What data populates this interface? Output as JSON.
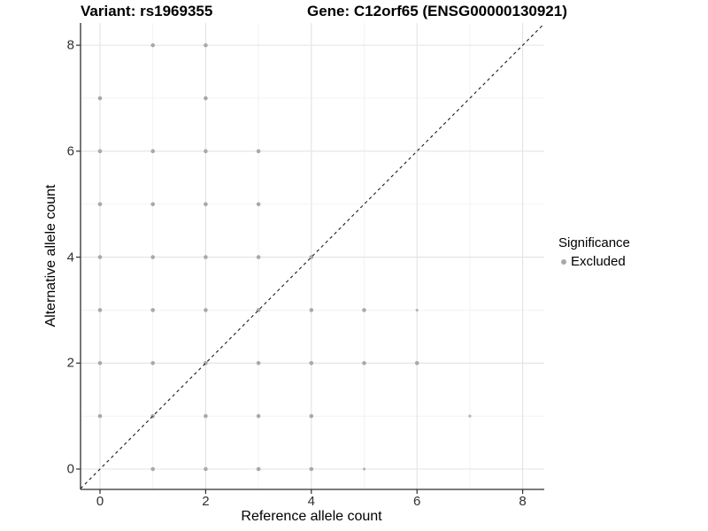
{
  "titles": {
    "variant": "Variant: rs1969355",
    "gene": "Gene: C12orf65 (ENSG00000130921)"
  },
  "axes": {
    "x_label": "Reference allele count",
    "y_label": "Alternative allele count",
    "x_tick_labels": [
      "0",
      "2",
      "4",
      "6",
      "8"
    ],
    "y_tick_labels": [
      "0",
      "2",
      "4",
      "6",
      "8"
    ]
  },
  "legend": {
    "title": "Significance",
    "items": [
      {
        "label": "Excluded",
        "color": "#a9a9a9"
      }
    ]
  },
  "colors": {
    "point": "#a9a9a9",
    "point_small": "#b5b5b5",
    "grid_major": "#e3e3e3",
    "grid_minor": "#f1f1f1",
    "axis_line": "#2e2e2e",
    "reference_line": "#1a1a1a",
    "background": "#ffffff"
  },
  "chart_data": {
    "type": "scatter",
    "title": "Variant: rs1969355   Gene: C12orf65 (ENSG00000130921)",
    "xlabel": "Reference allele count",
    "ylabel": "Alternative allele count",
    "xlim": [
      -0.4,
      8.4
    ],
    "ylim": [
      -0.4,
      8.4
    ],
    "x_breaks": [
      0,
      2,
      4,
      6,
      8
    ],
    "y_breaks": [
      0,
      2,
      4,
      6,
      8
    ],
    "minor_breaks": [
      1,
      3,
      5,
      7
    ],
    "grid": "on",
    "legend_position": "right",
    "reference_line": {
      "equation": "y = x",
      "style": "dashed",
      "color": "#1a1a1a"
    },
    "series": [
      {
        "name": "Excluded",
        "color": "#a9a9a9",
        "points": [
          [
            1,
            0
          ],
          [
            2,
            0
          ],
          [
            3,
            0
          ],
          [
            4,
            0
          ],
          [
            0,
            1
          ],
          [
            1,
            1
          ],
          [
            2,
            1
          ],
          [
            3,
            1
          ],
          [
            4,
            1
          ],
          [
            0,
            2
          ],
          [
            1,
            2
          ],
          [
            2,
            2
          ],
          [
            3,
            2
          ],
          [
            4,
            2
          ],
          [
            5,
            2
          ],
          [
            6,
            2
          ],
          [
            0,
            3
          ],
          [
            1,
            3
          ],
          [
            2,
            3
          ],
          [
            3,
            3
          ],
          [
            4,
            3
          ],
          [
            5,
            3
          ],
          [
            0,
            4
          ],
          [
            1,
            4
          ],
          [
            2,
            4
          ],
          [
            3,
            4
          ],
          [
            4,
            4
          ],
          [
            0,
            5
          ],
          [
            1,
            5
          ],
          [
            2,
            5
          ],
          [
            3,
            5
          ],
          [
            0,
            6
          ],
          [
            1,
            6
          ],
          [
            2,
            6
          ],
          [
            3,
            6
          ],
          [
            0,
            7
          ],
          [
            2,
            7
          ],
          [
            1,
            8
          ],
          [
            2,
            8
          ]
        ],
        "small_points": [
          [
            5,
            0
          ],
          [
            7,
            1
          ],
          [
            6,
            3
          ]
        ]
      }
    ]
  }
}
